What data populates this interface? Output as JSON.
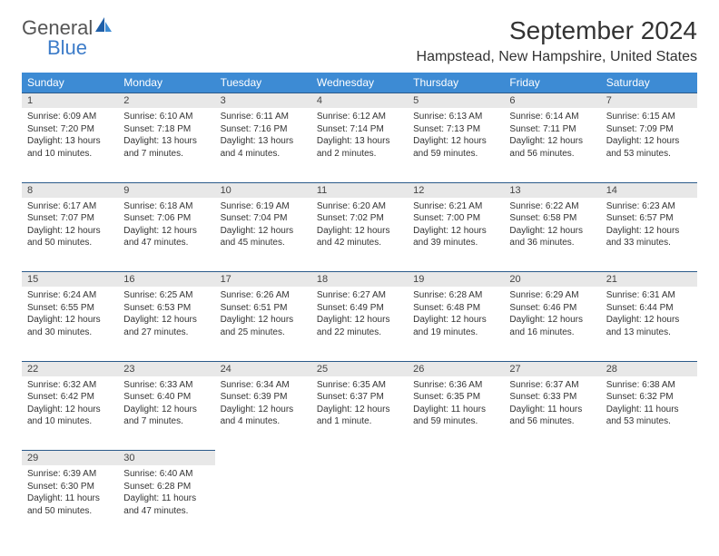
{
  "brand": {
    "main": "General",
    "sub": "Blue"
  },
  "title": "September 2024",
  "location": "Hampstead, New Hampshire, United States",
  "colors": {
    "header_bg": "#3d8bd4",
    "header_text": "#ffffff",
    "daynum_bg": "#e8e8e8",
    "rule": "#2b5a8a",
    "logo_accent": "#3d7cc9",
    "body_text": "#333333"
  },
  "weekdays": [
    "Sunday",
    "Monday",
    "Tuesday",
    "Wednesday",
    "Thursday",
    "Friday",
    "Saturday"
  ],
  "weeks": [
    [
      {
        "n": "1",
        "sr": "6:09 AM",
        "ss": "7:20 PM",
        "dl": "13 hours and 10 minutes."
      },
      {
        "n": "2",
        "sr": "6:10 AM",
        "ss": "7:18 PM",
        "dl": "13 hours and 7 minutes."
      },
      {
        "n": "3",
        "sr": "6:11 AM",
        "ss": "7:16 PM",
        "dl": "13 hours and 4 minutes."
      },
      {
        "n": "4",
        "sr": "6:12 AM",
        "ss": "7:14 PM",
        "dl": "13 hours and 2 minutes."
      },
      {
        "n": "5",
        "sr": "6:13 AM",
        "ss": "7:13 PM",
        "dl": "12 hours and 59 minutes."
      },
      {
        "n": "6",
        "sr": "6:14 AM",
        "ss": "7:11 PM",
        "dl": "12 hours and 56 minutes."
      },
      {
        "n": "7",
        "sr": "6:15 AM",
        "ss": "7:09 PM",
        "dl": "12 hours and 53 minutes."
      }
    ],
    [
      {
        "n": "8",
        "sr": "6:17 AM",
        "ss": "7:07 PM",
        "dl": "12 hours and 50 minutes."
      },
      {
        "n": "9",
        "sr": "6:18 AM",
        "ss": "7:06 PM",
        "dl": "12 hours and 47 minutes."
      },
      {
        "n": "10",
        "sr": "6:19 AM",
        "ss": "7:04 PM",
        "dl": "12 hours and 45 minutes."
      },
      {
        "n": "11",
        "sr": "6:20 AM",
        "ss": "7:02 PM",
        "dl": "12 hours and 42 minutes."
      },
      {
        "n": "12",
        "sr": "6:21 AM",
        "ss": "7:00 PM",
        "dl": "12 hours and 39 minutes."
      },
      {
        "n": "13",
        "sr": "6:22 AM",
        "ss": "6:58 PM",
        "dl": "12 hours and 36 minutes."
      },
      {
        "n": "14",
        "sr": "6:23 AM",
        "ss": "6:57 PM",
        "dl": "12 hours and 33 minutes."
      }
    ],
    [
      {
        "n": "15",
        "sr": "6:24 AM",
        "ss": "6:55 PM",
        "dl": "12 hours and 30 minutes."
      },
      {
        "n": "16",
        "sr": "6:25 AM",
        "ss": "6:53 PM",
        "dl": "12 hours and 27 minutes."
      },
      {
        "n": "17",
        "sr": "6:26 AM",
        "ss": "6:51 PM",
        "dl": "12 hours and 25 minutes."
      },
      {
        "n": "18",
        "sr": "6:27 AM",
        "ss": "6:49 PM",
        "dl": "12 hours and 22 minutes."
      },
      {
        "n": "19",
        "sr": "6:28 AM",
        "ss": "6:48 PM",
        "dl": "12 hours and 19 minutes."
      },
      {
        "n": "20",
        "sr": "6:29 AM",
        "ss": "6:46 PM",
        "dl": "12 hours and 16 minutes."
      },
      {
        "n": "21",
        "sr": "6:31 AM",
        "ss": "6:44 PM",
        "dl": "12 hours and 13 minutes."
      }
    ],
    [
      {
        "n": "22",
        "sr": "6:32 AM",
        "ss": "6:42 PM",
        "dl": "12 hours and 10 minutes."
      },
      {
        "n": "23",
        "sr": "6:33 AM",
        "ss": "6:40 PM",
        "dl": "12 hours and 7 minutes."
      },
      {
        "n": "24",
        "sr": "6:34 AM",
        "ss": "6:39 PM",
        "dl": "12 hours and 4 minutes."
      },
      {
        "n": "25",
        "sr": "6:35 AM",
        "ss": "6:37 PM",
        "dl": "12 hours and 1 minute."
      },
      {
        "n": "26",
        "sr": "6:36 AM",
        "ss": "6:35 PM",
        "dl": "11 hours and 59 minutes."
      },
      {
        "n": "27",
        "sr": "6:37 AM",
        "ss": "6:33 PM",
        "dl": "11 hours and 56 minutes."
      },
      {
        "n": "28",
        "sr": "6:38 AM",
        "ss": "6:32 PM",
        "dl": "11 hours and 53 minutes."
      }
    ],
    [
      {
        "n": "29",
        "sr": "6:39 AM",
        "ss": "6:30 PM",
        "dl": "11 hours and 50 minutes."
      },
      {
        "n": "30",
        "sr": "6:40 AM",
        "ss": "6:28 PM",
        "dl": "11 hours and 47 minutes."
      },
      null,
      null,
      null,
      null,
      null
    ]
  ],
  "labels": {
    "sunrise": "Sunrise: ",
    "sunset": "Sunset: ",
    "daylight": "Daylight: "
  }
}
